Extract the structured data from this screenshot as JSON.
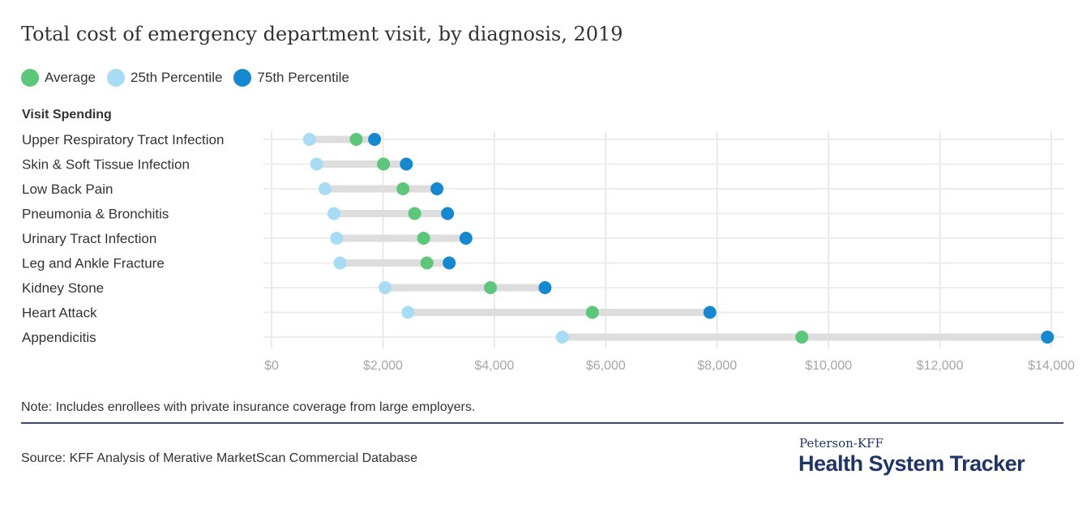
{
  "chart_data": {
    "type": "dumbbell",
    "title": "Total cost of emergency department visit, by diagnosis, 2019",
    "subtitle": "Visit Spending",
    "categories": [
      "Upper Respiratory Tract Infection",
      "Skin & Soft Tissue Infection",
      "Low Back Pain",
      "Pneumonia & Bronchitis",
      "Urinary Tract Infection",
      "Leg and Ankle Fracture",
      "Kidney Stone",
      "Heart Attack",
      "Appendicitis"
    ],
    "series": [
      {
        "name": "Average",
        "color": "#5cc67a",
        "values": [
          1520,
          2010,
          2360,
          2570,
          2730,
          2790,
          3930,
          5760,
          9520
        ]
      },
      {
        "name": "25th Percentile",
        "color": "#a8dcf5",
        "values": [
          680,
          810,
          960,
          1120,
          1170,
          1230,
          2040,
          2450,
          5220
        ]
      },
      {
        "name": "75th Percentile",
        "color": "#1588cf",
        "values": [
          1850,
          2420,
          2970,
          3160,
          3490,
          3190,
          4910,
          7870,
          13930
        ]
      }
    ],
    "legend_order": [
      0,
      1,
      2
    ],
    "xlim": [
      0,
      14000
    ],
    "xticks": [
      0,
      2000,
      4000,
      6000,
      8000,
      10000,
      12000,
      14000
    ],
    "xtick_labels": [
      "$0",
      "$2,000",
      "$4,000",
      "$6,000",
      "$8,000",
      "$10,000",
      "$12,000",
      "$14,000"
    ],
    "grid": true,
    "legend_placement": "top-left"
  },
  "note": "Note: Includes enrollees with private insurance coverage from large employers.",
  "source": "Source: KFF Analysis of Merative MarketScan Commercial Database",
  "brand": {
    "line1": "Peterson-KFF",
    "line2": "Health System Tracker"
  }
}
